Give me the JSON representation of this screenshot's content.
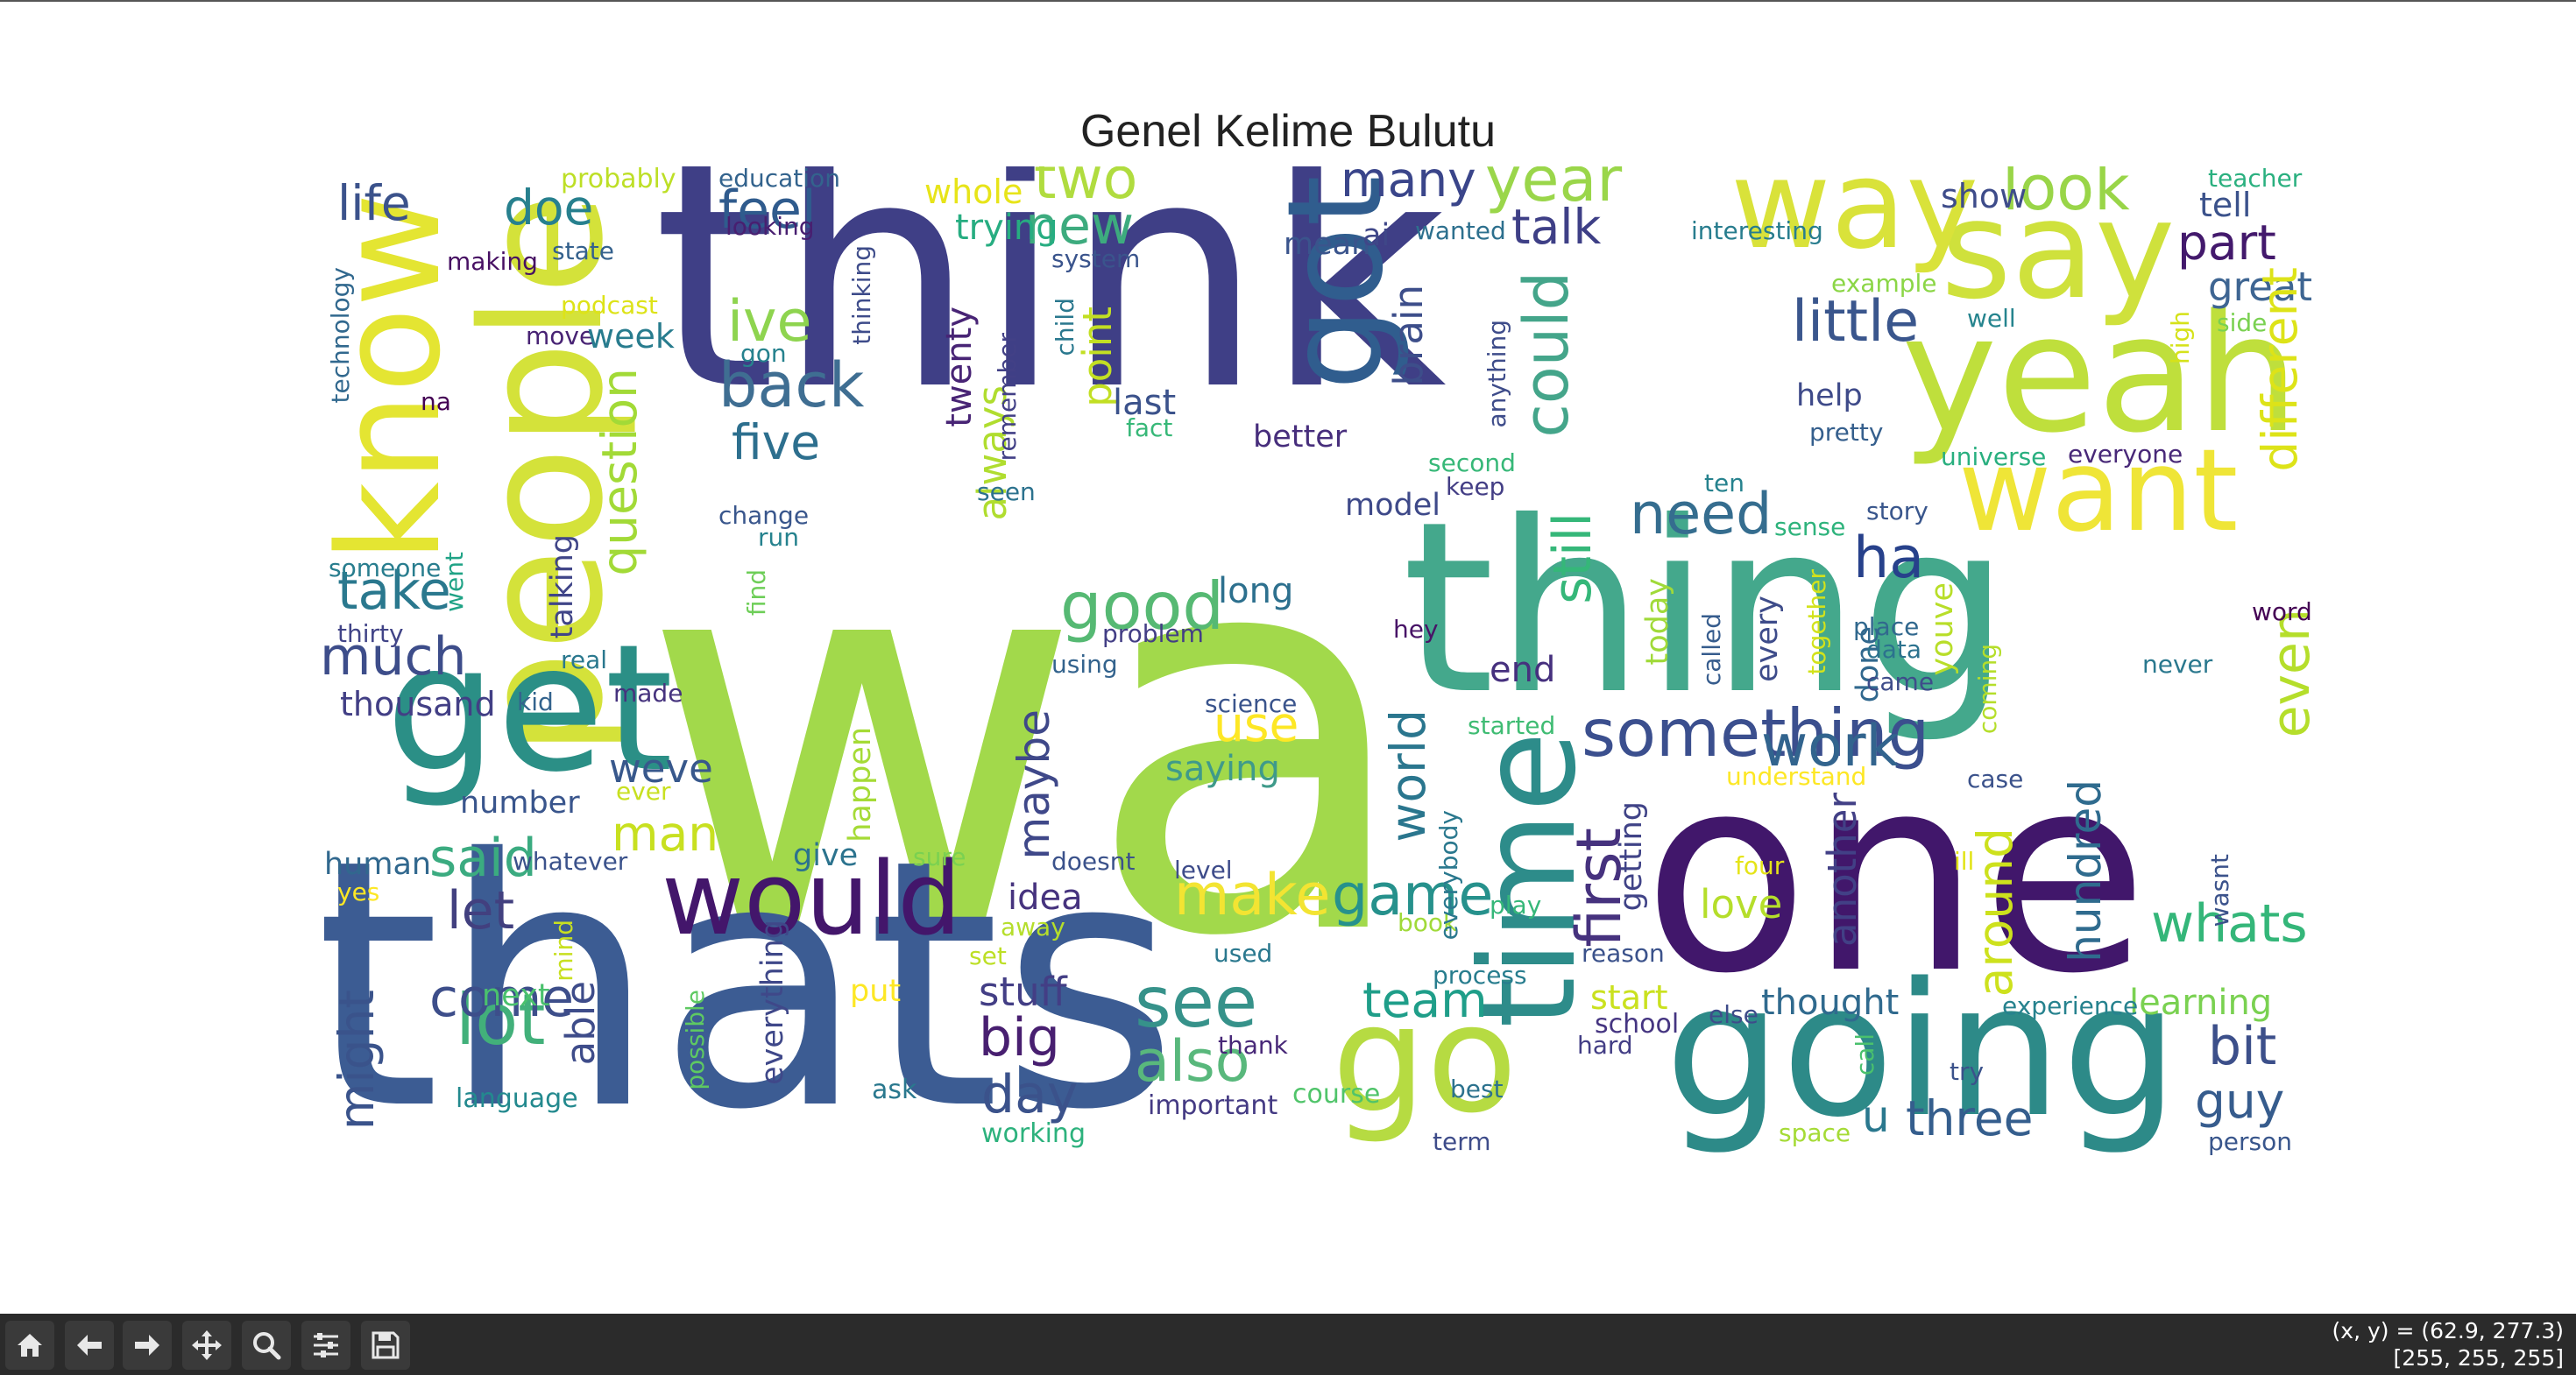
{
  "figure": {
    "title": "Genel Kelime Bulutu"
  },
  "toolbar": {
    "buttons": [
      {
        "name": "home-button",
        "icon": "home-icon"
      },
      {
        "name": "back-button",
        "icon": "arrow-left-icon"
      },
      {
        "name": "forward-button",
        "icon": "arrow-right-icon"
      },
      {
        "name": "pan-button",
        "icon": "move-icon"
      },
      {
        "name": "zoom-button",
        "icon": "magnifier-icon"
      },
      {
        "name": "configure-subplots-button",
        "icon": "sliders-icon"
      },
      {
        "name": "save-button",
        "icon": "floppy-disk-icon"
      }
    ],
    "coords": "(x, y) = (62.9, 277.3)",
    "pixel_value": "[255, 255, 255]"
  },
  "cloud": {
    "colormap": "viridis",
    "words": [
      {
        "t": "wa",
        "c": "#a2d94b"
      },
      {
        "t": "think",
        "c": "#3f3f86"
      },
      {
        "t": "thats",
        "c": "#3c5c93"
      },
      {
        "t": "thing",
        "c": "#44a88c"
      },
      {
        "t": "one",
        "c": "#41176b"
      },
      {
        "t": "going",
        "c": "#2d8a88"
      },
      {
        "t": "yeah",
        "c": "#bfdf3c"
      },
      {
        "t": "know",
        "c": "#e4e532"
      },
      {
        "t": "people",
        "c": "#d4e23a"
      },
      {
        "t": "get",
        "c": "#2b8f86"
      },
      {
        "t": "say",
        "c": "#cfe13c"
      },
      {
        "t": "way",
        "c": "#d9e23a"
      },
      {
        "t": "want",
        "c": "#efe537"
      },
      {
        "t": "time",
        "c": "#2d8c8a"
      },
      {
        "t": "got",
        "c": "#305d8e"
      },
      {
        "t": "go",
        "c": "#b6db42"
      },
      {
        "t": "would",
        "c": "#43166b"
      },
      {
        "t": "something",
        "c": "#3b4f8e"
      },
      {
        "t": "could",
        "c": "#44a58a"
      },
      {
        "t": "first",
        "c": "#46327e"
      },
      {
        "t": "see",
        "c": "#36928a"
      },
      {
        "t": "also",
        "c": "#59b87c"
      },
      {
        "t": "much",
        "c": "#3d4d8a"
      },
      {
        "t": "make",
        "c": "#f3e432"
      },
      {
        "t": "lot",
        "c": "#42b07a"
      },
      {
        "t": "back",
        "c": "#3f6e92"
      },
      {
        "t": "five",
        "c": "#2d6f8e"
      },
      {
        "t": "year",
        "c": "#9ad64a"
      },
      {
        "t": "look",
        "c": "#99d548"
      },
      {
        "t": "little",
        "c": "#3a568d"
      },
      {
        "t": "two",
        "c": "#b0dc3f"
      },
      {
        "t": "new",
        "c": "#3dab7e"
      },
      {
        "t": "feel",
        "c": "#2f5b8d"
      },
      {
        "t": "doe",
        "c": "#27808e"
      },
      {
        "t": "life",
        "c": "#3b528b"
      },
      {
        "t": "ive",
        "c": "#8ed44f"
      },
      {
        "t": "many",
        "c": "#3a458a"
      },
      {
        "t": "talk",
        "c": "#3e3f86"
      },
      {
        "t": "part",
        "c": "#43196c"
      },
      {
        "t": "great",
        "c": "#3e6592"
      },
      {
        "t": "good",
        "c": "#56b973"
      },
      {
        "t": "need",
        "c": "#356d8f"
      },
      {
        "t": "ha",
        "c": "#27418b"
      },
      {
        "t": "take",
        "c": "#2a788e"
      },
      {
        "t": "question",
        "c": "#a2da37"
      },
      {
        "t": "still",
        "c": "#35b779"
      },
      {
        "t": "world",
        "c": "#2a768e"
      },
      {
        "t": "game",
        "c": "#26918c"
      },
      {
        "t": "work",
        "c": "#32648e"
      },
      {
        "t": "different",
        "c": "#dde318"
      },
      {
        "t": "even",
        "c": "#b5de2b"
      },
      {
        "t": "whats",
        "c": "#34b679"
      },
      {
        "t": "said",
        "c": "#3bab80"
      },
      {
        "t": "let",
        "c": "#42407f"
      },
      {
        "t": "come",
        "c": "#3d4e8a"
      },
      {
        "t": "might",
        "c": "#3a538b"
      },
      {
        "t": "man",
        "c": "#c8e020"
      },
      {
        "t": "weve",
        "c": "#38588c"
      },
      {
        "t": "maybe",
        "c": "#3f4889"
      },
      {
        "t": "idea",
        "c": "#46337e"
      },
      {
        "t": "stuff",
        "c": "#433e85"
      },
      {
        "t": "big",
        "c": "#481f70"
      },
      {
        "t": "day",
        "c": "#3b528b"
      },
      {
        "t": "team",
        "c": "#1f9e89"
      },
      {
        "t": "bit",
        "c": "#3c4f8a"
      },
      {
        "t": "guy",
        "c": "#365c8d"
      },
      {
        "t": "u",
        "c": "#2a788e"
      },
      {
        "t": "three",
        "c": "#355e8d"
      },
      {
        "t": "around",
        "c": "#cde11d"
      },
      {
        "t": "hundred",
        "c": "#2f6b8e"
      },
      {
        "t": "another",
        "c": "#424086"
      },
      {
        "t": "love",
        "c": "#b5de2b"
      },
      {
        "t": "thought",
        "c": "#306a8e"
      },
      {
        "t": "learning",
        "c": "#7ad151"
      },
      {
        "t": "use",
        "c": "#fde725"
      },
      {
        "t": "saying",
        "c": "#3f9a8a"
      },
      {
        "t": "end",
        "c": "#46307e"
      },
      {
        "t": "long",
        "c": "#2d708e"
      },
      {
        "t": "point",
        "c": "#c2df23"
      },
      {
        "t": "always",
        "c": "#b0dd2f"
      },
      {
        "t": "twenty",
        "c": "#482475"
      },
      {
        "t": "last",
        "c": "#3b528b"
      },
      {
        "t": "better",
        "c": "#472e7c"
      },
      {
        "t": "brain",
        "c": "#3d4e8a"
      },
      {
        "t": "model",
        "c": "#3e4989"
      },
      {
        "t": "talking",
        "c": "#404588"
      },
      {
        "t": "thousand",
        "c": "#423f85"
      },
      {
        "t": "number",
        "c": "#39558c"
      },
      {
        "t": "human",
        "c": "#31688e"
      },
      {
        "t": "able",
        "c": "#3e4c8a"
      },
      {
        "t": "next",
        "c": "#4ac16d"
      },
      {
        "t": "language",
        "c": "#23898e"
      },
      {
        "t": "everything",
        "c": "#3f4889"
      },
      {
        "t": "give",
        "c": "#2c738e"
      },
      {
        "t": "happen",
        "c": "#a5db36"
      },
      {
        "t": "put",
        "c": "#fde725"
      },
      {
        "t": "ask",
        "c": "#2a788e"
      },
      {
        "t": "working",
        "c": "#2db27d"
      },
      {
        "t": "important",
        "c": "#443a83"
      },
      {
        "t": "course",
        "c": "#50c46a"
      },
      {
        "t": "today",
        "c": "#a0da39"
      },
      {
        "t": "getting",
        "c": "#404387"
      },
      {
        "t": "every",
        "c": "#3e4c8a"
      },
      {
        "t": "done",
        "c": "#31688e"
      },
      {
        "t": "youve",
        "c": "#b8de29"
      },
      {
        "t": "start",
        "c": "#cae11f"
      },
      {
        "t": "school",
        "c": "#453581"
      },
      {
        "t": "help",
        "c": "#3e4a89"
      },
      {
        "t": "show",
        "c": "#3e4c8a"
      },
      {
        "t": "tell",
        "c": "#3b528b"
      },
      {
        "t": "trying",
        "c": "#27ad81"
      },
      {
        "t": "whole",
        "c": "#e7e419"
      },
      {
        "t": "mean",
        "c": "#3a548c"
      },
      {
        "t": "ai",
        "c": "#3f4788"
      },
      {
        "t": "probably",
        "c": "#bddf26"
      },
      {
        "t": "education",
        "c": "#33638d"
      },
      {
        "t": "teacher",
        "c": "#2ab07f"
      },
      {
        "t": "interesting",
        "c": "#287d8e"
      },
      {
        "t": "wanted",
        "c": "#2d708e"
      },
      {
        "t": "looking",
        "c": "#481f70"
      },
      {
        "t": "system",
        "c": "#3a548c"
      },
      {
        "t": "state",
        "c": "#34618d"
      },
      {
        "t": "making",
        "c": "#471063"
      },
      {
        "t": "podcast",
        "c": "#dde318"
      },
      {
        "t": "move",
        "c": "#482374"
      },
      {
        "t": "week",
        "c": "#287c8e"
      },
      {
        "t": "gon",
        "c": "#26828e"
      },
      {
        "t": "na",
        "c": "#440154"
      },
      {
        "t": "technology",
        "c": "#31688e"
      },
      {
        "t": "thinking",
        "c": "#3e4c8a"
      },
      {
        "t": "remember",
        "c": "#424086"
      },
      {
        "t": "child",
        "c": "#2a788e"
      },
      {
        "t": "fact",
        "c": "#37b878"
      },
      {
        "t": "anything",
        "c": "#3e4c8a"
      },
      {
        "t": "second",
        "c": "#37b878"
      },
      {
        "t": "keep",
        "c": "#433e85"
      },
      {
        "t": "example",
        "c": "#8bd646"
      },
      {
        "t": "well",
        "c": "#25848e"
      },
      {
        "t": "side",
        "c": "#7ad151"
      },
      {
        "t": "high",
        "c": "#d5e21a"
      },
      {
        "t": "pretty",
        "c": "#355f8d"
      },
      {
        "t": "universe",
        "c": "#29af7f"
      },
      {
        "t": "everyone",
        "c": "#482878"
      },
      {
        "t": "ten",
        "c": "#26828e"
      },
      {
        "t": "sense",
        "c": "#2eb37c"
      },
      {
        "t": "story",
        "c": "#39568c"
      },
      {
        "t": "word",
        "c": "#440154"
      },
      {
        "t": "place",
        "c": "#31688e"
      },
      {
        "t": "data",
        "c": "#2c728e"
      },
      {
        "t": "came",
        "c": "#3e4c8a"
      },
      {
        "t": "never",
        "c": "#2a788e"
      },
      {
        "t": "wasnt",
        "c": "#3b528b"
      },
      {
        "t": "hey",
        "c": "#481467"
      },
      {
        "t": "problem",
        "c": "#433e85"
      },
      {
        "t": "using",
        "c": "#33638d"
      },
      {
        "t": "science",
        "c": "#3a548c"
      },
      {
        "t": "seen",
        "c": "#2c728e"
      },
      {
        "t": "change",
        "c": "#39568c"
      },
      {
        "t": "run",
        "c": "#26828e"
      },
      {
        "t": "someone",
        "c": "#287d8e"
      },
      {
        "t": "went",
        "c": "#20a386"
      },
      {
        "t": "thirty",
        "c": "#414487"
      },
      {
        "t": "real",
        "c": "#2a788e"
      },
      {
        "t": "kid",
        "c": "#33638d"
      },
      {
        "t": "made",
        "c": "#46337e"
      },
      {
        "t": "find",
        "c": "#6ece58"
      },
      {
        "t": "ever",
        "c": "#c8e020"
      },
      {
        "t": "whatever",
        "c": "#3b528b"
      },
      {
        "t": "yes",
        "c": "#fde725"
      },
      {
        "t": "sure",
        "c": "#7ad151"
      },
      {
        "t": "doesnt",
        "c": "#3b528b"
      },
      {
        "t": "level",
        "c": "#3e4c8a"
      },
      {
        "t": "away",
        "c": "#b5de2b"
      },
      {
        "t": "set",
        "c": "#bddf26"
      },
      {
        "t": "used",
        "c": "#2a788e"
      },
      {
        "t": "thank",
        "c": "#482878"
      },
      {
        "t": "mind",
        "c": "#c8e020"
      },
      {
        "t": "possible",
        "c": "#5ec962"
      },
      {
        "t": "book",
        "c": "#a0da39"
      },
      {
        "t": "play",
        "c": "#35b779"
      },
      {
        "t": "process",
        "c": "#287d8e"
      },
      {
        "t": "reason",
        "c": "#3b528b"
      },
      {
        "t": "started",
        "c": "#3fbc73"
      },
      {
        "t": "everybody",
        "c": "#2a788e"
      },
      {
        "t": "called",
        "c": "#365c8d"
      },
      {
        "t": "together",
        "c": "#d2e21b"
      },
      {
        "t": "coming",
        "c": "#b5de2b"
      },
      {
        "t": "understand",
        "c": "#fde725"
      },
      {
        "t": "case",
        "c": "#3b528b"
      },
      {
        "t": "four",
        "c": "#e5e419"
      },
      {
        "t": "ill",
        "c": "#e2e418"
      },
      {
        "t": "else",
        "c": "#3e4c8a"
      },
      {
        "t": "experience",
        "c": "#26828e"
      },
      {
        "t": "hard",
        "c": "#433e85"
      },
      {
        "t": "call",
        "c": "#4ac16d"
      },
      {
        "t": "try",
        "c": "#3b528b"
      },
      {
        "t": "best",
        "c": "#2c728e"
      },
      {
        "t": "term",
        "c": "#3e4c8a"
      },
      {
        "t": "space",
        "c": "#a5db36"
      },
      {
        "t": "person",
        "c": "#39568c"
      }
    ]
  }
}
